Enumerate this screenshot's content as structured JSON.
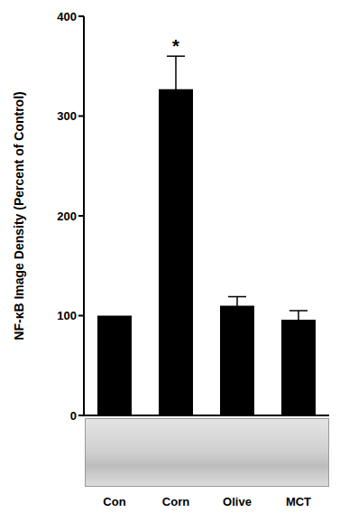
{
  "chart_data": {
    "type": "bar",
    "y_label": "NF-κB Image Density (Percent of Control)",
    "categories": [
      "Con",
      "Corn",
      "Olive",
      "MCT"
    ],
    "values": [
      100,
      327,
      110,
      96
    ],
    "errors": [
      0,
      33,
      9,
      9
    ],
    "color": "#000000",
    "ylim": [
      0,
      400
    ],
    "yticks": [
      0,
      100,
      200,
      300,
      400
    ],
    "grid": false,
    "annotations": [
      {
        "category": "Corn",
        "text": "*"
      }
    ]
  }
}
